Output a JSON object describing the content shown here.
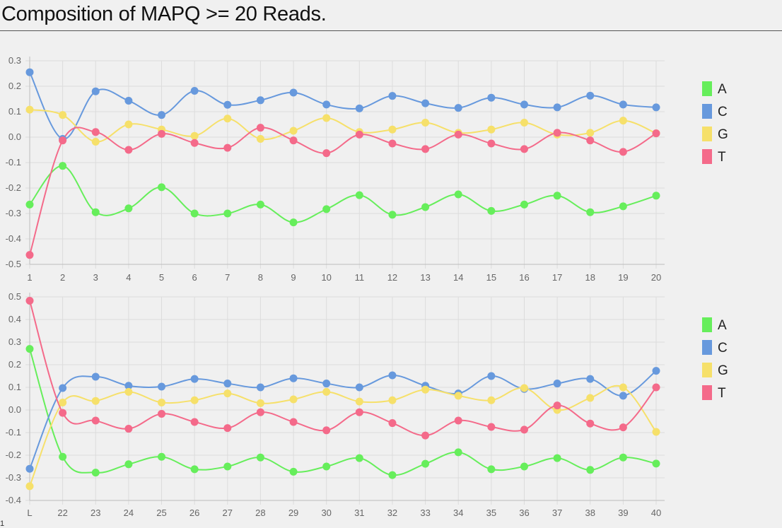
{
  "page": {
    "title": "Composition of MAPQ >= 20 Reads.",
    "footer": "1"
  },
  "colors": {
    "A": "#66ee5b",
    "C": "#6799dd",
    "G": "#f6e06a",
    "T": "#f46a8a",
    "grid": "#dcdcdc",
    "axis": "#bdbdbd",
    "background": "#f0f0f0"
  },
  "chart_data": [
    {
      "type": "line",
      "title": "",
      "xlabel": "",
      "ylabel": "",
      "categories": [
        "1",
        "2",
        "3",
        "4",
        "5",
        "6",
        "7",
        "8",
        "9",
        "10",
        "11",
        "12",
        "13",
        "14",
        "15",
        "16",
        "17",
        "18",
        "19",
        "20"
      ],
      "ylim": [
        -0.5,
        0.3
      ],
      "yticks": [
        "0.3",
        "0.2",
        "0.1",
        "0.0",
        "-0.1",
        "-0.2",
        "-0.3",
        "-0.4",
        "-0.5"
      ],
      "grid": true,
      "legend_position": "right",
      "series": [
        {
          "name": "A",
          "values": [
            -0.265,
            -0.113,
            -0.295,
            -0.28,
            -0.197,
            -0.3,
            -0.3,
            -0.265,
            -0.335,
            -0.283,
            -0.228,
            -0.305,
            -0.275,
            -0.225,
            -0.29,
            -0.265,
            -0.23,
            -0.295,
            -0.272,
            -0.23
          ]
        },
        {
          "name": "C",
          "values": [
            0.255,
            -0.007,
            0.18,
            0.143,
            0.087,
            0.182,
            0.127,
            0.145,
            0.175,
            0.128,
            0.113,
            0.162,
            0.133,
            0.115,
            0.155,
            0.128,
            0.117,
            0.163,
            0.128,
            0.117
          ]
        },
        {
          "name": "G",
          "values": [
            0.108,
            0.087,
            -0.018,
            0.05,
            0.03,
            0.005,
            0.073,
            -0.007,
            0.025,
            0.075,
            0.02,
            0.03,
            0.057,
            0.017,
            0.03,
            0.057,
            0.01,
            0.017,
            0.065,
            0.015
          ]
        },
        {
          "name": "T",
          "values": [
            -0.463,
            -0.013,
            0.02,
            -0.05,
            0.013,
            -0.023,
            -0.042,
            0.037,
            -0.013,
            -0.063,
            0.01,
            -0.025,
            -0.047,
            0.01,
            -0.025,
            -0.047,
            0.017,
            -0.013,
            -0.058,
            0.015
          ]
        }
      ]
    },
    {
      "type": "line",
      "title": "",
      "xlabel": "",
      "ylabel": "",
      "categories": [
        "L",
        "22",
        "23",
        "24",
        "25",
        "26",
        "27",
        "28",
        "29",
        "30",
        "31",
        "32",
        "33",
        "34",
        "35",
        "36",
        "37",
        "38",
        "39",
        "40"
      ],
      "ylim": [
        -0.4,
        0.5
      ],
      "yticks": [
        "0.5",
        "0.4",
        "0.3",
        "0.2",
        "0.1",
        "0.0",
        "-0.1",
        "-0.2",
        "-0.3",
        "-0.4"
      ],
      "grid": true,
      "legend_position": "right",
      "series": [
        {
          "name": "A",
          "values": [
            0.27,
            -0.207,
            -0.277,
            -0.24,
            -0.207,
            -0.262,
            -0.25,
            -0.21,
            -0.273,
            -0.25,
            -0.213,
            -0.288,
            -0.238,
            -0.187,
            -0.262,
            -0.25,
            -0.213,
            -0.265,
            -0.21,
            -0.237
          ]
        },
        {
          "name": "C",
          "values": [
            -0.26,
            0.097,
            0.147,
            0.107,
            0.103,
            0.137,
            0.117,
            0.1,
            0.14,
            0.117,
            0.1,
            0.153,
            0.107,
            0.073,
            0.15,
            0.093,
            0.117,
            0.137,
            0.063,
            0.173
          ]
        },
        {
          "name": "G",
          "values": [
            -0.337,
            0.033,
            0.04,
            0.08,
            0.033,
            0.043,
            0.073,
            0.03,
            0.047,
            0.08,
            0.037,
            0.043,
            0.09,
            0.063,
            0.043,
            0.097,
            0.0,
            0.053,
            0.1,
            -0.097
          ]
        },
        {
          "name": "T",
          "values": [
            0.483,
            -0.013,
            -0.047,
            -0.083,
            -0.017,
            -0.053,
            -0.08,
            -0.01,
            -0.053,
            -0.09,
            -0.01,
            -0.058,
            -0.113,
            -0.047,
            -0.075,
            -0.087,
            0.02,
            -0.06,
            -0.077,
            0.1
          ]
        }
      ]
    }
  ]
}
